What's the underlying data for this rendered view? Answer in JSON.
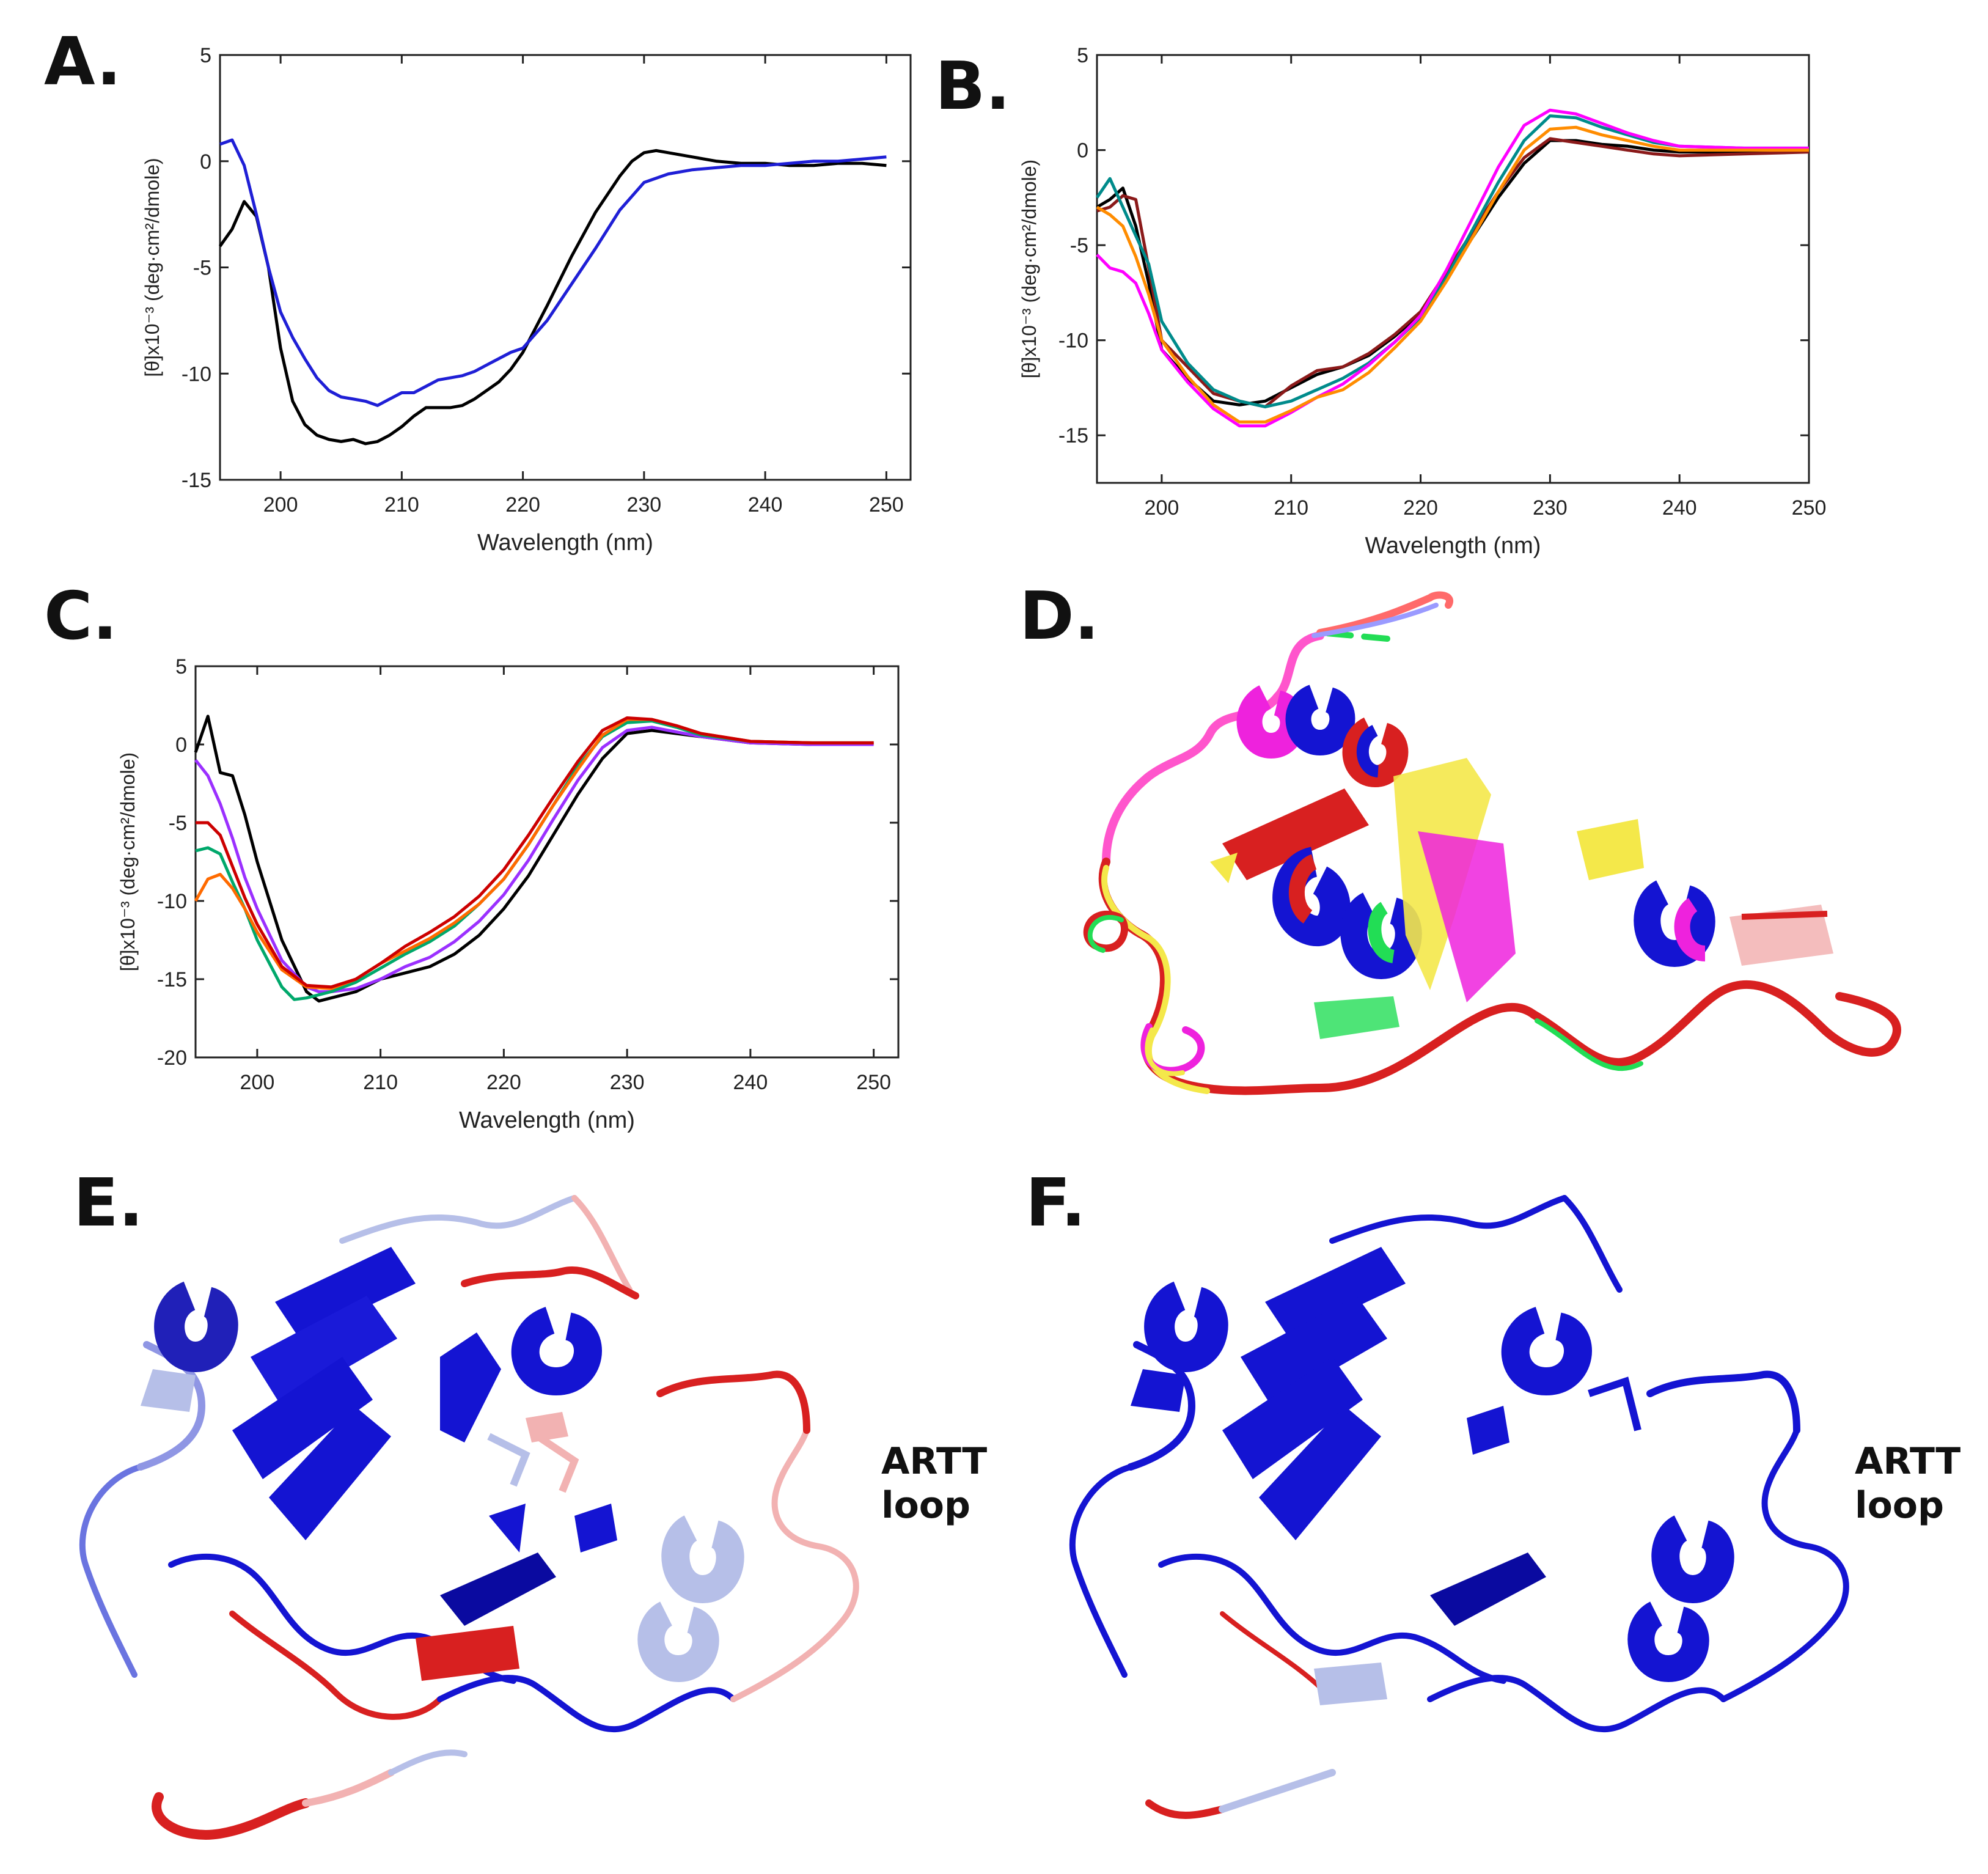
{
  "figure": {
    "panels": {
      "A": {
        "label": "A."
      },
      "B": {
        "label": "B."
      },
      "C": {
        "label": "C."
      },
      "D": {
        "label": "D."
      },
      "E": {
        "label": "E.",
        "annotation_line1": "ARTT",
        "annotation_line2": "loop"
      },
      "F": {
        "label": "F.",
        "annotation_line1": "ARTT",
        "annotation_line2": "loop"
      }
    },
    "colors": {
      "protein_blue": "#1414d2",
      "protein_red": "#d82020",
      "protein_light_blue": "#b6bfe8",
      "protein_pink": "#f2b2b2",
      "protein_yellow": "#f4e84a",
      "protein_magenta": "#ee22dd",
      "protein_green": "#22dd55"
    }
  },
  "chart_data": [
    {
      "panel": "A",
      "type": "line",
      "title": "",
      "xlabel": "Wavelength (nm)",
      "ylabel": "[θ]x10⁻³ (deg·cm²/dmole)",
      "xlim": [
        195,
        252
      ],
      "ylim": [
        -15,
        5
      ],
      "xticks": [
        200,
        210,
        220,
        230,
        240,
        250
      ],
      "yticks": [
        5,
        0,
        -5,
        -10,
        -15
      ],
      "grid": false,
      "series": [
        {
          "color": "#000000",
          "x": [
            195,
            196,
            197,
            198,
            199,
            200,
            201,
            202,
            203,
            204,
            205,
            206,
            207,
            208,
            209,
            210,
            211,
            212,
            213,
            214,
            215,
            216,
            217,
            218,
            219,
            220,
            222,
            224,
            226,
            228,
            229,
            230,
            231,
            232,
            234,
            236,
            238,
            240,
            242,
            244,
            246,
            248,
            250
          ],
          "y": [
            -4.0,
            -3.2,
            -1.9,
            -2.6,
            -5.0,
            -8.8,
            -11.3,
            -12.4,
            -12.9,
            -13.1,
            -13.2,
            -13.1,
            -13.3,
            -13.2,
            -12.9,
            -12.5,
            -12.0,
            -11.6,
            -11.6,
            -11.6,
            -11.5,
            -11.2,
            -10.8,
            -10.4,
            -9.8,
            -9.0,
            -6.8,
            -4.5,
            -2.4,
            -0.7,
            0.0,
            0.4,
            0.5,
            0.4,
            0.2,
            0.0,
            -0.1,
            -0.1,
            -0.2,
            -0.2,
            -0.1,
            -0.1,
            -0.2
          ]
        },
        {
          "color": "#1f1fd6",
          "x": [
            195,
            196,
            197,
            198,
            199,
            200,
            201,
            202,
            203,
            204,
            205,
            206,
            207,
            208,
            209,
            210,
            211,
            212,
            213,
            214,
            215,
            216,
            217,
            218,
            219,
            220,
            222,
            224,
            226,
            228,
            230,
            232,
            234,
            236,
            238,
            240,
            242,
            244,
            246,
            248,
            250
          ],
          "y": [
            0.8,
            1.0,
            -0.2,
            -2.5,
            -5.0,
            -7.1,
            -8.3,
            -9.3,
            -10.2,
            -10.8,
            -11.1,
            -11.2,
            -11.3,
            -11.5,
            -11.2,
            -10.9,
            -10.9,
            -10.6,
            -10.3,
            -10.2,
            -10.1,
            -9.9,
            -9.6,
            -9.3,
            -9.0,
            -8.8,
            -7.5,
            -5.8,
            -4.1,
            -2.3,
            -1.0,
            -0.6,
            -0.4,
            -0.3,
            -0.2,
            -0.2,
            -0.1,
            0.0,
            0.0,
            0.1,
            0.2
          ]
        }
      ]
    },
    {
      "panel": "B",
      "type": "line",
      "title": "",
      "xlabel": "Wavelength (nm)",
      "ylabel": "[θ]x10⁻³ (deg·cm²/dmole)",
      "xlim": [
        195,
        250
      ],
      "ylim": [
        -17.5,
        5
      ],
      "xticks": [
        200,
        210,
        220,
        230,
        240,
        250
      ],
      "yticks": [
        5,
        0,
        -5,
        -10,
        -15
      ],
      "grid": false,
      "series": [
        {
          "color": "#000000",
          "x": [
            195,
            196,
            197,
            198,
            199,
            200,
            202,
            204,
            206,
            208,
            210,
            212,
            214,
            216,
            218,
            220,
            222,
            224,
            226,
            228,
            230,
            232,
            234,
            236,
            238,
            240,
            245,
            250
          ],
          "y": [
            -3.0,
            -2.6,
            -2.0,
            -4.0,
            -7.0,
            -10.5,
            -12.0,
            -13.2,
            -13.4,
            -13.2,
            -12.5,
            -11.8,
            -11.4,
            -10.8,
            -9.8,
            -8.6,
            -6.6,
            -4.6,
            -2.5,
            -0.7,
            0.5,
            0.5,
            0.3,
            0.2,
            0.0,
            -0.1,
            -0.1,
            0.0
          ]
        },
        {
          "color": "#8b1a1a",
          "x": [
            195,
            196,
            197,
            198,
            199,
            200,
            202,
            204,
            206,
            208,
            210,
            212,
            214,
            216,
            218,
            220,
            222,
            224,
            226,
            228,
            230,
            232,
            234,
            236,
            238,
            240,
            245,
            250
          ],
          "y": [
            -3.2,
            -3.0,
            -2.4,
            -2.6,
            -6.2,
            -10.0,
            -11.4,
            -12.8,
            -13.2,
            -13.5,
            -12.4,
            -11.6,
            -11.4,
            -10.7,
            -9.7,
            -8.5,
            -6.4,
            -4.3,
            -2.2,
            -0.4,
            0.6,
            0.4,
            0.2,
            0.0,
            -0.2,
            -0.3,
            -0.2,
            -0.1
          ]
        },
        {
          "color": "#008b8b",
          "x": [
            195,
            196,
            197,
            198,
            199,
            200,
            202,
            204,
            206,
            208,
            210,
            212,
            214,
            216,
            218,
            220,
            222,
            224,
            226,
            228,
            230,
            232,
            234,
            236,
            238,
            240,
            245,
            250
          ],
          "y": [
            -2.5,
            -1.5,
            -3.0,
            -4.5,
            -6.0,
            -9.0,
            -11.2,
            -12.6,
            -13.2,
            -13.5,
            -13.2,
            -12.6,
            -12.0,
            -11.2,
            -10.1,
            -8.8,
            -6.7,
            -4.2,
            -1.7,
            0.5,
            1.8,
            1.7,
            1.2,
            0.8,
            0.4,
            0.2,
            0.1,
            0.1
          ]
        },
        {
          "color": "#ff00ff",
          "x": [
            195,
            196,
            197,
            198,
            199,
            200,
            202,
            204,
            206,
            208,
            210,
            212,
            214,
            216,
            218,
            220,
            222,
            224,
            226,
            228,
            230,
            232,
            234,
            236,
            238,
            240,
            245,
            250
          ],
          "y": [
            -5.5,
            -6.2,
            -6.4,
            -7.0,
            -8.6,
            -10.5,
            -12.2,
            -13.6,
            -14.5,
            -14.5,
            -13.8,
            -13.0,
            -12.3,
            -11.3,
            -10.1,
            -8.7,
            -6.3,
            -3.6,
            -0.9,
            1.3,
            2.1,
            1.9,
            1.4,
            0.9,
            0.5,
            0.2,
            0.1,
            0.1
          ]
        },
        {
          "color": "#ff8c00",
          "x": [
            195,
            196,
            197,
            198,
            199,
            200,
            202,
            204,
            206,
            208,
            210,
            212,
            214,
            216,
            218,
            220,
            222,
            224,
            226,
            228,
            230,
            232,
            234,
            236,
            238,
            240,
            245,
            250
          ],
          "y": [
            -3.0,
            -3.4,
            -4.0,
            -5.6,
            -7.6,
            -10.0,
            -11.9,
            -13.4,
            -14.3,
            -14.3,
            -13.7,
            -13.0,
            -12.6,
            -11.7,
            -10.4,
            -9.0,
            -6.9,
            -4.6,
            -2.2,
            0.0,
            1.1,
            1.2,
            0.8,
            0.5,
            0.2,
            0.0,
            0.0,
            0.0
          ]
        }
      ]
    },
    {
      "panel": "C",
      "type": "line",
      "title": "",
      "xlabel": "Wavelength (nm)",
      "ylabel": "[θ]x10⁻³ (deg·cm²/dmole)",
      "xlim": [
        195,
        252
      ],
      "ylim": [
        -20,
        5
      ],
      "xticks": [
        200,
        210,
        220,
        230,
        240,
        250
      ],
      "yticks": [
        5,
        0,
        -5,
        -10,
        -15,
        -20
      ],
      "grid": false,
      "series": [
        {
          "color": "#000000",
          "x": [
            195,
            196,
            197,
            198,
            199,
            200,
            202,
            204,
            205,
            206,
            208,
            210,
            212,
            214,
            216,
            218,
            220,
            222,
            224,
            226,
            228,
            230,
            232,
            234,
            236,
            240,
            245,
            250
          ],
          "y": [
            -0.5,
            1.8,
            -1.8,
            -2.0,
            -4.5,
            -7.5,
            -12.5,
            -15.8,
            -16.4,
            -16.2,
            -15.8,
            -15.0,
            -14.6,
            -14.2,
            -13.4,
            -12.2,
            -10.5,
            -8.4,
            -5.8,
            -3.2,
            -0.9,
            0.7,
            0.9,
            0.7,
            0.5,
            0.1,
            0.0,
            0.1
          ]
        },
        {
          "color": "#9b30ff",
          "x": [
            195,
            196,
            197,
            198,
            199,
            200,
            202,
            204,
            205,
            206,
            208,
            210,
            212,
            214,
            216,
            218,
            220,
            222,
            224,
            226,
            228,
            230,
            232,
            234,
            236,
            240,
            245,
            250
          ],
          "y": [
            -1.0,
            -2.0,
            -3.8,
            -6.0,
            -8.5,
            -10.5,
            -13.8,
            -15.5,
            -15.8,
            -15.8,
            -15.6,
            -15.0,
            -14.2,
            -13.6,
            -12.6,
            -11.3,
            -9.6,
            -7.4,
            -4.8,
            -2.3,
            -0.2,
            0.9,
            1.1,
            0.8,
            0.5,
            0.1,
            0.0,
            0.0
          ]
        },
        {
          "color": "#00a86b",
          "x": [
            195,
            196,
            197,
            198,
            199,
            200,
            202,
            203,
            204,
            205,
            206,
            208,
            210,
            212,
            214,
            216,
            218,
            220,
            222,
            224,
            226,
            228,
            230,
            232,
            234,
            236,
            240,
            245,
            250
          ],
          "y": [
            -6.8,
            -6.6,
            -7.0,
            -8.8,
            -10.5,
            -12.5,
            -15.5,
            -16.3,
            -16.2,
            -16.0,
            -15.8,
            -15.2,
            -14.3,
            -13.4,
            -12.6,
            -11.6,
            -10.2,
            -8.6,
            -6.4,
            -3.9,
            -1.4,
            0.5,
            1.4,
            1.5,
            1.1,
            0.6,
            0.2,
            0.1,
            0.1
          ]
        },
        {
          "color": "#ff6a00",
          "x": [
            195,
            196,
            197,
            198,
            199,
            200,
            202,
            204,
            206,
            208,
            210,
            212,
            214,
            216,
            218,
            220,
            222,
            224,
            226,
            228,
            230,
            232,
            234,
            236,
            240,
            245,
            250
          ],
          "y": [
            -10.0,
            -8.6,
            -8.3,
            -9.2,
            -10.5,
            -12.0,
            -14.4,
            -15.5,
            -15.6,
            -15.0,
            -14.0,
            -13.2,
            -12.4,
            -11.4,
            -10.2,
            -8.6,
            -6.4,
            -3.9,
            -1.6,
            0.6,
            1.6,
            1.6,
            1.2,
            0.7,
            0.2,
            0.1,
            0.1
          ]
        },
        {
          "color": "#cc0000",
          "x": [
            195,
            196,
            197,
            198,
            199,
            200,
            202,
            204,
            206,
            208,
            210,
            212,
            214,
            216,
            218,
            220,
            222,
            224,
            226,
            228,
            230,
            232,
            234,
            236,
            240,
            245,
            250
          ],
          "y": [
            -5.0,
            -5.0,
            -5.8,
            -7.8,
            -9.8,
            -11.5,
            -14.2,
            -15.4,
            -15.5,
            -15.0,
            -14.0,
            -12.9,
            -12.0,
            -11.0,
            -9.7,
            -8.0,
            -5.8,
            -3.4,
            -1.1,
            0.9,
            1.7,
            1.6,
            1.2,
            0.7,
            0.2,
            0.1,
            0.1
          ]
        }
      ]
    }
  ]
}
